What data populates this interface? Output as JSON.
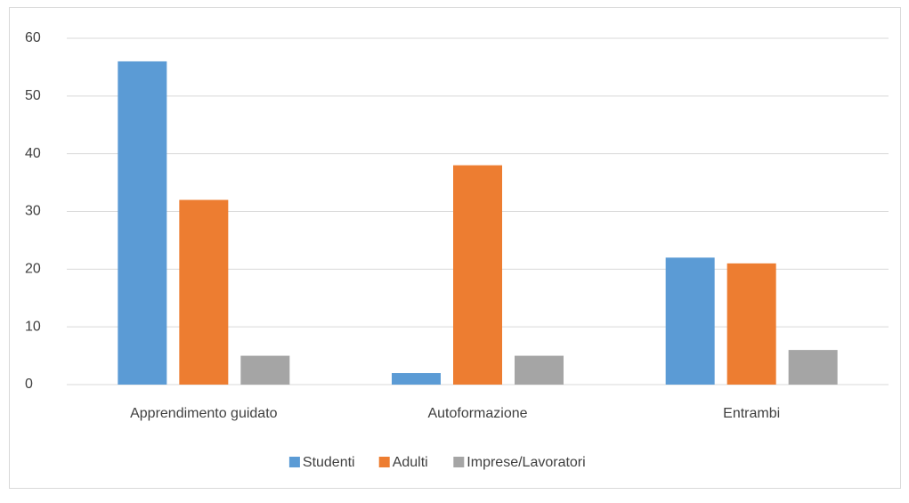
{
  "chart_data": {
    "type": "bar",
    "categories": [
      "Apprendimento guidato",
      "Autoformazione",
      "Entrambi"
    ],
    "series": [
      {
        "name": "Studenti",
        "color": "#5b9bd5",
        "values": [
          56,
          2,
          22
        ]
      },
      {
        "name": "Adulti",
        "color": "#ed7d31",
        "values": [
          32,
          38,
          21
        ]
      },
      {
        "name": "Imprese/Lavoratori",
        "color": "#a5a5a5",
        "values": [
          5,
          5,
          6
        ]
      }
    ],
    "ylim": [
      0,
      60
    ],
    "yticks": [
      0,
      10,
      20,
      30,
      40,
      50,
      60
    ],
    "grid": true,
    "legend": "bottom"
  }
}
